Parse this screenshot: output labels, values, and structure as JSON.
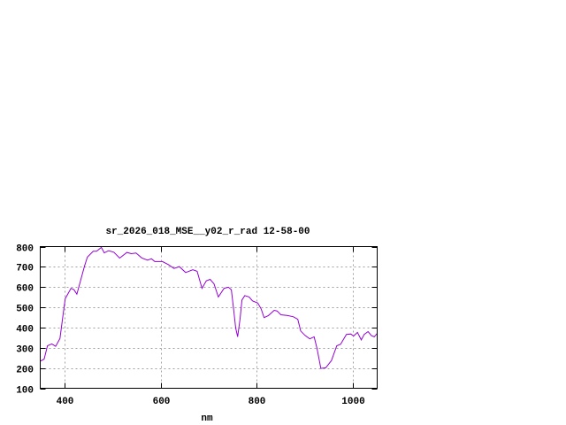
{
  "chart_data": {
    "type": "line",
    "title": "sr_2026_018_MSE__y02_r_rad 12-58-00",
    "xlabel": "nm",
    "ylabel": "",
    "xlim": [
      350,
      1050
    ],
    "ylim": [
      100,
      800
    ],
    "xticks": [
      400,
      600,
      800,
      1000
    ],
    "yticks": [
      100,
      200,
      300,
      400,
      500,
      600,
      700,
      800
    ],
    "grid": true,
    "line_color": "#9400d3",
    "series": [
      {
        "x": [
          349,
          358,
          365,
          374,
          382,
          391,
          397,
          402,
          414,
          420,
          426,
          432,
          442,
          448,
          460,
          467,
          477,
          483,
          492,
          503,
          515,
          530,
          539,
          549,
          561,
          573,
          581,
          588,
          604,
          616,
          628,
          639,
          652,
          667,
          676,
          686,
          695,
          703,
          711,
          720,
          732,
          741,
          747,
          752,
          756,
          760,
          765,
          769,
          775,
          784,
          791,
          802,
          809,
          815,
          824,
          836,
          842,
          850,
          864,
          876,
          885,
          891,
          900,
          910,
          919,
          925,
          933,
          943,
          955,
          966,
          974,
          986,
          995,
          1001,
          1009,
          1017,
          1023,
          1031,
          1038,
          1044,
          1050
        ],
        "y": [
          234,
          244,
          310,
          319,
          307,
          346,
          456,
          543,
          594,
          587,
          565,
          616,
          704,
          748,
          777,
          777,
          796,
          769,
          780,
          772,
          743,
          771,
          765,
          768,
          744,
          733,
          740,
          726,
          726,
          711,
          692,
          701,
          672,
          686,
          678,
          594,
          631,
          638,
          616,
          551,
          594,
          599,
          587,
          485,
          398,
          354,
          441,
          536,
          558,
          551,
          532,
          521,
          492,
          449,
          459,
          485,
          482,
          463,
          459,
          453,
          441,
          383,
          361,
          344,
          354,
          296,
          198,
          201,
          237,
          310,
          317,
          366,
          368,
          358,
          376,
          339,
          366,
          380,
          360,
          354,
          371
        ]
      }
    ]
  }
}
